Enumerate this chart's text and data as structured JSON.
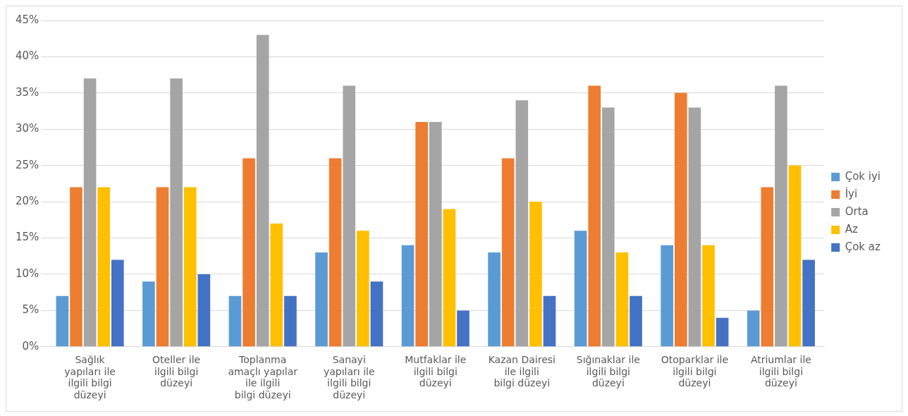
{
  "chart_data": {
    "type": "bar",
    "categories": [
      "Sağlık yapıları ile ilgili bilgi düzeyi",
      "Oteller ile ilgili bilgi düzeyi",
      "Toplanma amaçlı yapılar ile ilgili bilgi düzeyi",
      "Sanayi yapıları ile ilgili bilgi düzeyi",
      "Mutfaklar ile ilgili bilgi düzeyi",
      "Kazan Dairesi ile ilgili bilgi düzeyi",
      "Sığınaklar ile ilgili bilgi düzeyi",
      "Otoparklar ile ilgili bilgi düzeyi",
      "Atriumlar ile ilgili bilgi düzeyi"
    ],
    "series": [
      {
        "name": "Çok iyi",
        "color": "#5b9bd5",
        "values": [
          7,
          9,
          7,
          13,
          14,
          13,
          16,
          14,
          5
        ]
      },
      {
        "name": "İyi",
        "color": "#ed7d31",
        "values": [
          22,
          22,
          26,
          26,
          31,
          26,
          36,
          35,
          22
        ]
      },
      {
        "name": "Orta",
        "color": "#a5a5a5",
        "values": [
          37,
          37,
          43,
          36,
          31,
          34,
          33,
          33,
          36
        ]
      },
      {
        "name": "Az",
        "color": "#ffc000",
        "values": [
          22,
          22,
          17,
          16,
          19,
          20,
          13,
          14,
          25
        ]
      },
      {
        "name": "Çok az",
        "color": "#4472c4",
        "values": [
          12,
          10,
          7,
          9,
          5,
          7,
          7,
          4,
          12
        ]
      }
    ],
    "ylim": [
      0,
      45
    ],
    "yticks": [
      {
        "value": 0,
        "label": "0%"
      },
      {
        "value": 5,
        "label": "5%"
      },
      {
        "value": 10,
        "label": "10%"
      },
      {
        "value": 15,
        "label": "15%"
      },
      {
        "value": 20,
        "label": "20%"
      },
      {
        "value": 25,
        "label": "25%"
      },
      {
        "value": 30,
        "label": "30%"
      },
      {
        "value": 35,
        "label": "35%"
      },
      {
        "value": 40,
        "label": "40%"
      },
      {
        "value": 45,
        "label": "45%"
      }
    ],
    "grid": "y",
    "legend": "right"
  }
}
